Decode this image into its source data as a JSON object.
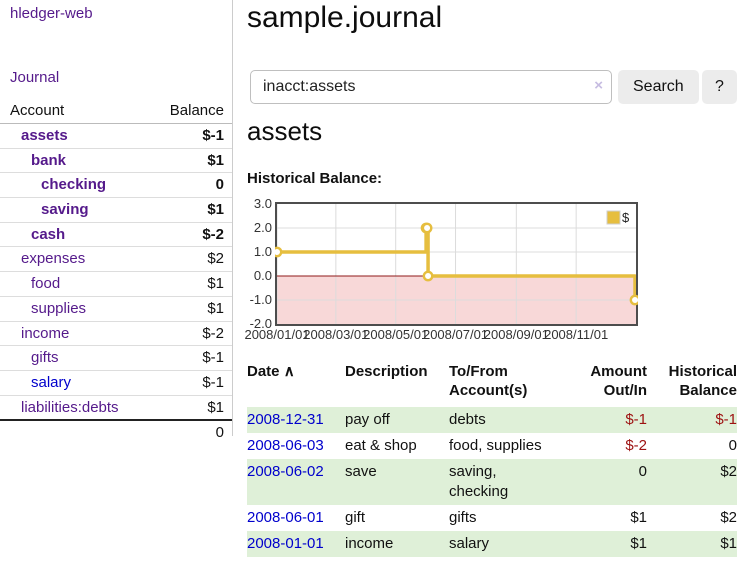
{
  "sidebar": {
    "brand": "hledger-web",
    "journal_link": "Journal",
    "accounts": {
      "col_account": "Account",
      "col_balance": "Balance",
      "rows": [
        {
          "name": "assets",
          "depth": 1,
          "bold": true,
          "color": "purple",
          "balance": "$-1",
          "balance_style": "neg-strong"
        },
        {
          "name": "bank",
          "depth": 2,
          "bold": true,
          "color": "purple",
          "balance": "$1",
          "balance_style": "pos"
        },
        {
          "name": "checking",
          "depth": 3,
          "bold": true,
          "color": "purple",
          "balance": "0",
          "balance_style": "pos"
        },
        {
          "name": "saving",
          "depth": 3,
          "bold": true,
          "color": "purple",
          "balance": "$1",
          "balance_style": "pos"
        },
        {
          "name": "cash",
          "depth": 2,
          "bold": true,
          "color": "purple",
          "balance": "$-2",
          "balance_style": "neg-strong"
        },
        {
          "name": "expenses",
          "depth": 1,
          "bold": false,
          "color": "purple",
          "balance": "$2",
          "balance_style": "pos"
        },
        {
          "name": "food",
          "depth": 2,
          "bold": false,
          "color": "purple",
          "balance": "$1",
          "balance_style": "pos"
        },
        {
          "name": "supplies",
          "depth": 2,
          "bold": false,
          "color": "purple",
          "balance": "$1",
          "balance_style": "pos"
        },
        {
          "name": "income",
          "depth": 1,
          "bold": false,
          "color": "purple",
          "balance": "$-2",
          "balance_style": "neg-muted"
        },
        {
          "name": "gifts",
          "depth": 2,
          "bold": false,
          "color": "purple",
          "balance": "$-1",
          "balance_style": "neg-muted"
        },
        {
          "name": "salary",
          "depth": 2,
          "bold": false,
          "color": "blue",
          "balance": "$-1",
          "balance_style": "neg-muted"
        },
        {
          "name": "liabilities:debts",
          "depth": 1,
          "bold": false,
          "color": "purple",
          "balance": "$1",
          "balance_style": "pos"
        }
      ],
      "total": "0"
    }
  },
  "main": {
    "title": "sample.journal",
    "search": {
      "value": "inacct:assets",
      "clear_icon": "×",
      "button_label": "Search",
      "help_label": "?"
    },
    "account_heading": "assets",
    "chart_label": "Historical Balance:",
    "register": {
      "col_date": "Date",
      "sort_icon": "∧",
      "col_description": "Description",
      "col_tofrom": "To/From\nAccount(s)",
      "col_amount": "Amount\nOut/In",
      "col_balance": "Historical\nBalance",
      "rows": [
        {
          "date": "2008-12-31",
          "description": "pay off",
          "accounts": "debts",
          "amount": "$-1",
          "amount_style": "neg",
          "balance": "$-1",
          "balance_style": "neg",
          "highlight": true
        },
        {
          "date": "2008-06-03",
          "description": "eat & shop",
          "accounts": "food, supplies",
          "amount": "$-2",
          "amount_style": "neg",
          "balance": "0",
          "balance_style": "pos",
          "highlight": false
        },
        {
          "date": "2008-06-02",
          "description": "save",
          "accounts": "saving,\nchecking",
          "amount": "0",
          "amount_style": "pos",
          "balance": "$2",
          "balance_style": "pos",
          "highlight": true
        },
        {
          "date": "2008-06-01",
          "description": "gift",
          "accounts": "gifts",
          "amount": "$1",
          "amount_style": "pos",
          "balance": "$2",
          "balance_style": "pos",
          "highlight": false
        },
        {
          "date": "2008-01-01",
          "description": "income",
          "accounts": "salary",
          "amount": "$1",
          "amount_style": "pos",
          "balance": "$1",
          "balance_style": "pos",
          "highlight": true
        }
      ]
    }
  },
  "chart_data": {
    "type": "line",
    "title": "Historical Balance",
    "step": true,
    "x_domain": [
      "2008-01-01",
      "2009-01-01"
    ],
    "ylim": [
      -2,
      3
    ],
    "series": [
      {
        "name": "$",
        "points": [
          {
            "date": "2008-01-01",
            "value": 1
          },
          {
            "date": "2008-06-01",
            "value": 2
          },
          {
            "date": "2008-06-02",
            "value": 2
          },
          {
            "date": "2008-06-03",
            "value": 0
          },
          {
            "date": "2008-12-31",
            "value": -1
          }
        ]
      }
    ],
    "yticks": [
      {
        "v": 3,
        "label": "3.0"
      },
      {
        "v": 2,
        "label": "2.0"
      },
      {
        "v": 1,
        "label": "1.0"
      },
      {
        "v": 0,
        "label": "0.0"
      },
      {
        "v": -1,
        "label": "-1.0"
      },
      {
        "v": -2,
        "label": "-2.0"
      }
    ],
    "xticks": [
      {
        "date": "2008-01-01",
        "label": "2008/01/01"
      },
      {
        "date": "2008-03-01",
        "label": "2008/03/01"
      },
      {
        "date": "2008-05-01",
        "label": "2008/05/01"
      },
      {
        "date": "2008-07-01",
        "label": "2008/07/01"
      },
      {
        "date": "2008-09-01",
        "label": "2008/09/01"
      },
      {
        "date": "2008-11-01",
        "label": "2008/11/01"
      }
    ],
    "legend": {
      "position": "top-right"
    },
    "grid": true,
    "colors": {
      "line": "#e6be3f",
      "marker_fill": "#ffffff",
      "grid": "#dcdcdc",
      "border": "#4d4d4d",
      "zero_line": "#8f1a1a",
      "negative_region": "#f8d8d8",
      "highlight_row": "#dff0d8",
      "link_purple": "#551a8b",
      "link_blue": "#0000cc",
      "negative_strong": "#9d1111",
      "negative_muted": "#c07c7c"
    }
  }
}
